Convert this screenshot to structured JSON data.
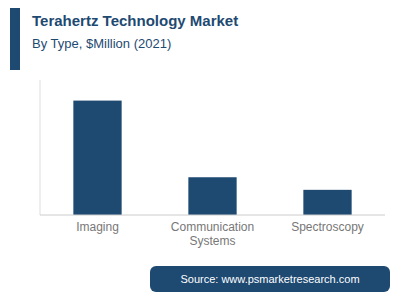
{
  "chart_data": {
    "type": "bar",
    "title": "Terahertz Technology Market",
    "subtitle": "By Type, $Million (2021)",
    "categories": [
      "Imaging",
      "Communication\nSystems",
      "Spectroscopy"
    ],
    "values": [
      100,
      33,
      22
    ],
    "color": "#1e4a72",
    "ylim": [
      0,
      118
    ],
    "grid": false,
    "tick_labels": "x",
    "annotations": [
      "Source: www.psmarketresearch.com"
    ]
  }
}
